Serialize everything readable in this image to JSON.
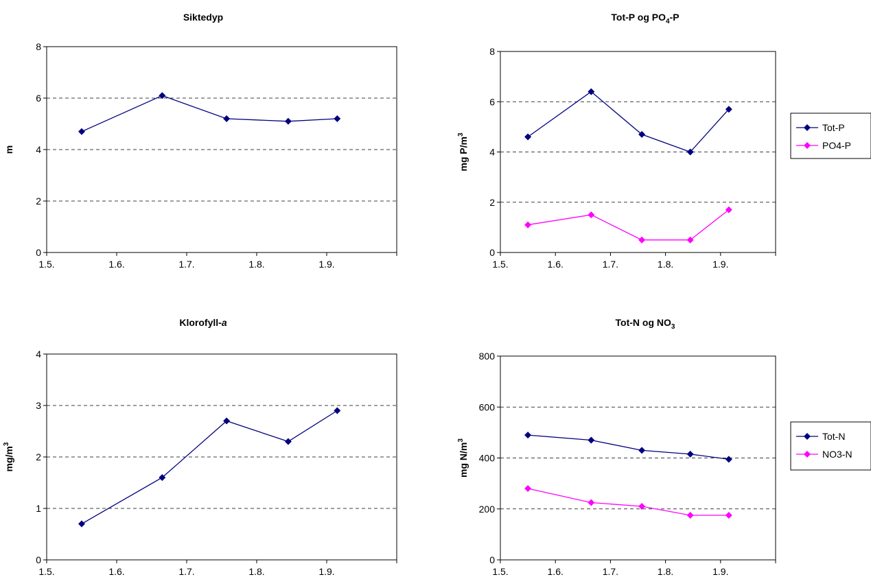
{
  "chart_data": [
    {
      "type": "line",
      "title": "Siktedyp",
      "title_sub": "",
      "title_suffix": "",
      "ylabel": "m",
      "ylabel_sup": "",
      "ylim": [
        0,
        8
      ],
      "yticks": [
        "0",
        "2",
        "4",
        "6",
        "8"
      ],
      "xticks": [
        "1.5.",
        "1.6.",
        "1.7.",
        "1.8.",
        "1.9."
      ],
      "x": [
        1.55,
        1.665,
        1.757,
        1.845,
        1.915
      ],
      "series": [
        {
          "name": "",
          "color": "#000080",
          "values": [
            4.7,
            6.1,
            5.2,
            5.1,
            5.2
          ]
        }
      ],
      "grid": "dashed horizontal",
      "legend": []
    },
    {
      "type": "line",
      "title": "Tot-P og PO",
      "title_sub": "4",
      "title_suffix": "-P",
      "ylabel": "mg P/m",
      "ylabel_sup": "3",
      "ylim": [
        0,
        8
      ],
      "yticks": [
        "0",
        "2",
        "4",
        "6",
        "8"
      ],
      "xticks": [
        "1.5.",
        "1.6.",
        "1.7.",
        "1.8.",
        "1.9."
      ],
      "x": [
        1.55,
        1.665,
        1.757,
        1.845,
        1.915
      ],
      "series": [
        {
          "name": "Tot-P",
          "color": "#000080",
          "values": [
            4.6,
            6.4,
            4.7,
            4.0,
            5.7
          ]
        },
        {
          "name": "PO4-P",
          "color": "#ff00ff",
          "values": [
            1.1,
            1.5,
            0.5,
            0.5,
            1.7
          ]
        }
      ],
      "grid": "dashed horizontal",
      "legend": [
        "Tot-P",
        "PO4-P"
      ]
    },
    {
      "type": "line",
      "title": "Klorofyll-",
      "title_italic": "a",
      "title_sub": "",
      "title_suffix": "",
      "ylabel": "mg/m",
      "ylabel_sup": "3",
      "ylim": [
        0,
        4
      ],
      "yticks": [
        "0",
        "1",
        "2",
        "3",
        "4"
      ],
      "xticks": [
        "1.5.",
        "1.6.",
        "1.7.",
        "1.8.",
        "1.9."
      ],
      "x": [
        1.55,
        1.665,
        1.757,
        1.845,
        1.915
      ],
      "series": [
        {
          "name": "",
          "color": "#000080",
          "values": [
            0.7,
            1.6,
            2.7,
            2.3,
            2.9
          ]
        }
      ],
      "grid": "dashed horizontal",
      "legend": []
    },
    {
      "type": "line",
      "title": "Tot-N og NO",
      "title_sub": "3",
      "title_suffix": "",
      "ylabel": "mg N/m",
      "ylabel_sup": "3",
      "ylim": [
        0,
        800
      ],
      "yticks": [
        "0",
        "200",
        "400",
        "600",
        "800"
      ],
      "xticks": [
        "1.5.",
        "1.6.",
        "1.7.",
        "1.8.",
        "1.9."
      ],
      "x": [
        1.55,
        1.665,
        1.757,
        1.845,
        1.915
      ],
      "series": [
        {
          "name": "Tot-N",
          "color": "#000080",
          "values": [
            490,
            470,
            430,
            415,
            395
          ]
        },
        {
          "name": "NO3-N",
          "color": "#ff00ff",
          "values": [
            280,
            225,
            210,
            175,
            175
          ]
        }
      ],
      "grid": "dashed horizontal",
      "legend": [
        "Tot-N",
        "NO3-N"
      ]
    }
  ]
}
